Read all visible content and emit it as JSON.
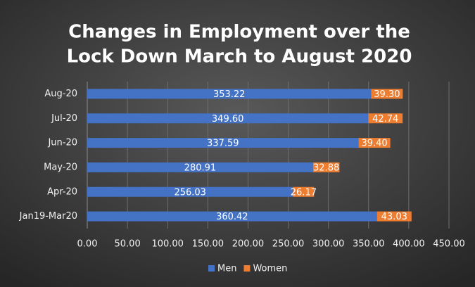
{
  "chart_data": {
    "type": "stacked-bar-horizontal",
    "title": [
      "Changes in Employment over the",
      "Lock Down March to August 2020"
    ],
    "categories": [
      "Aug-20",
      "Jul-20",
      "Jun-20",
      "May-20",
      "Apr-20",
      "Jan19-Mar20"
    ],
    "series": [
      {
        "name": "Men",
        "color": "#4472c4",
        "values": [
          353.22,
          349.6,
          337.59,
          280.91,
          256.03,
          360.42
        ],
        "value_labels": [
          "353.22",
          "349.60",
          "337.59",
          "280.91",
          "256.03",
          "360.42"
        ]
      },
      {
        "name": "Women",
        "color": "#ed7d31",
        "values": [
          39.3,
          42.74,
          39.4,
          32.88,
          26.17,
          43.03
        ],
        "value_labels": [
          "39.30",
          "42.74",
          "39.40",
          "32.88",
          "26.17",
          "43.03"
        ]
      }
    ],
    "xlim": [
      0,
      450
    ],
    "xticks": [
      {
        "value": 0,
        "label": "0.00"
      },
      {
        "value": 50,
        "label": "50.00"
      },
      {
        "value": 100,
        "label": "100.00"
      },
      {
        "value": 150,
        "label": "150.00"
      },
      {
        "value": 200,
        "label": "200.00"
      },
      {
        "value": 250,
        "label": "250.00"
      },
      {
        "value": 300,
        "label": "300.00"
      },
      {
        "value": 350,
        "label": "350.00"
      },
      {
        "value": 400,
        "label": "400.00"
      },
      {
        "value": 450,
        "label": "450.00"
      }
    ],
    "grid": true,
    "legend": "bottom"
  }
}
